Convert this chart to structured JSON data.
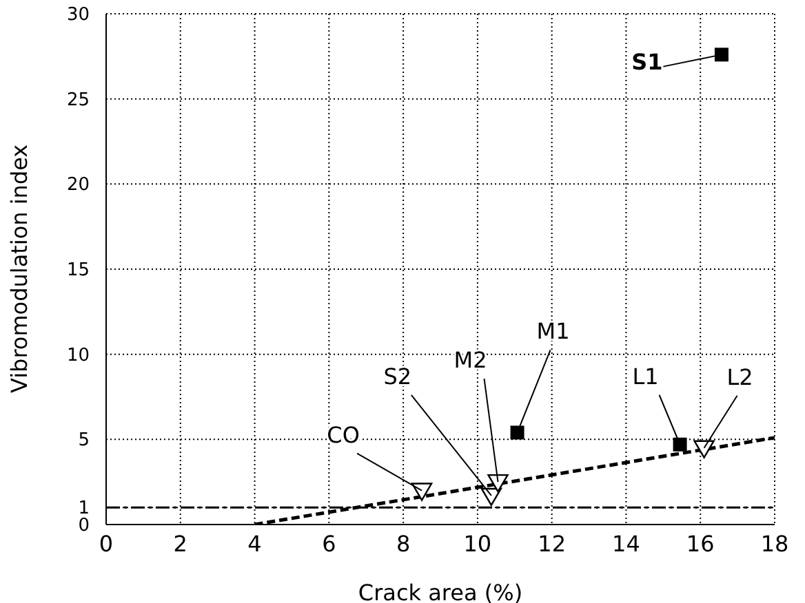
{
  "chart_data": {
    "type": "scatter",
    "xlabel": "Crack area (%)",
    "ylabel": "Vibromodulation index",
    "series": [
      {
        "marker": "square",
        "color": "#000000",
        "x": [
          16.57,
          11.07,
          15.45
        ],
        "values": [
          27.6,
          5.4,
          4.7
        ]
      },
      {
        "marker": "triangle",
        "color": "#000000",
        "x": [
          8.5,
          10.37,
          10.55,
          16.1
        ],
        "values": [
          2.0,
          1.7,
          2.5,
          4.5
        ]
      },
      {
        "type": "line",
        "line_style": "dashed",
        "color": "#000000",
        "x": [
          4,
          18
        ],
        "values": [
          0,
          5.1
        ]
      }
    ],
    "ref_lines": [
      {
        "axis": "y",
        "value": 1,
        "color": "#000000"
      }
    ],
    "annotations": [
      {
        "text": "S1",
        "x": 16.57,
        "y": 27.6
      },
      {
        "text": "M1",
        "x": 11.07,
        "y": 5.4
      },
      {
        "text": "L1",
        "x": 15.45,
        "y": 4.7
      },
      {
        "text": "CO",
        "x": 8.5,
        "y": 2.0
      },
      {
        "text": "S2",
        "x": 10.37,
        "y": 1.7
      },
      {
        "text": "M2",
        "x": 10.55,
        "y": 2.5
      },
      {
        "text": "L2",
        "x": 16.1,
        "y": 4.5
      }
    ],
    "xlim": [
      0,
      18
    ],
    "xticks": [
      0,
      2,
      4,
      6,
      8,
      10,
      12,
      14,
      16,
      18
    ],
    "ylim": [
      0,
      30
    ],
    "yticks": [
      0,
      1,
      5,
      10,
      15,
      20,
      25,
      30
    ],
    "grid": true,
    "legend": false
  }
}
